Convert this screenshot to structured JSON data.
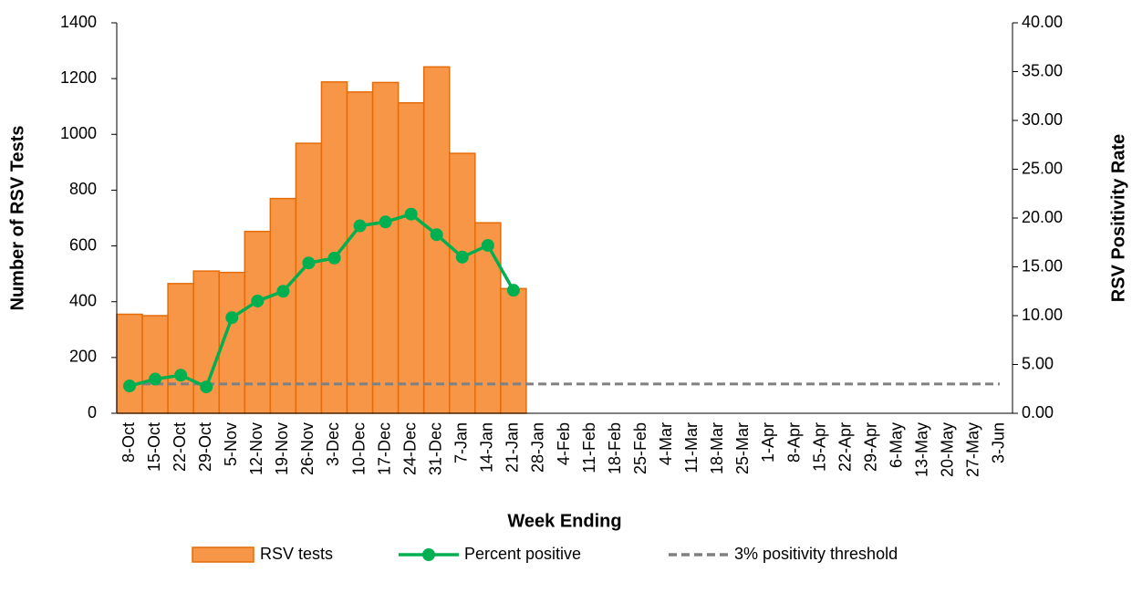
{
  "chart_data": {
    "type": "bar",
    "x_label": "Week Ending",
    "y_label": "Number of RSV Tests",
    "y2_label": "RSV Positivity Rate",
    "categories": [
      "8-Oct",
      "15-Oct",
      "22-Oct",
      "29-Oct",
      "5-Nov",
      "12-Nov",
      "19-Nov",
      "26-Nov",
      "3-Dec",
      "10-Dec",
      "17-Dec",
      "24-Dec",
      "31-Dec",
      "7-Jan",
      "14-Jan",
      "21-Jan",
      "28-Jan",
      "4-Feb",
      "11-Feb",
      "18-Feb",
      "25-Feb",
      "4-Mar",
      "11-Mar",
      "18-Mar",
      "25-Mar",
      "1-Apr",
      "8-Apr",
      "15-Apr",
      "22-Apr",
      "29-Apr",
      "6-May",
      "13-May",
      "20-May",
      "27-May",
      "3-Jun"
    ],
    "series": [
      {
        "name": "RSV tests",
        "type": "bar",
        "color": "#f79646",
        "edge": "#e46c0a",
        "values": [
          355,
          350,
          465,
          510,
          505,
          652,
          770,
          968,
          1188,
          1152,
          1186,
          1113,
          1242,
          932,
          683,
          447,
          null,
          null,
          null,
          null,
          null,
          null,
          null,
          null,
          null,
          null,
          null,
          null,
          null,
          null,
          null,
          null,
          null,
          null,
          null
        ]
      },
      {
        "name": "Percent positive",
        "type": "line",
        "axis": "y2",
        "color": "#00b050",
        "markers": true,
        "values": [
          2.8,
          3.5,
          3.9,
          2.7,
          9.8,
          11.5,
          12.5,
          15.4,
          15.9,
          19.2,
          19.6,
          20.4,
          18.3,
          16.0,
          17.2,
          12.6,
          null,
          null,
          null,
          null,
          null,
          null,
          null,
          null,
          null,
          null,
          null,
          null,
          null,
          null,
          null,
          null,
          null,
          null,
          null
        ]
      },
      {
        "name": "3% positivity threshold",
        "type": "line",
        "axis": "y2",
        "color": "#808080",
        "dashed": true,
        "values": [
          3,
          3,
          3,
          3,
          3,
          3,
          3,
          3,
          3,
          3,
          3,
          3,
          3,
          3,
          3,
          3,
          3,
          3,
          3,
          3,
          3,
          3,
          3,
          3,
          3,
          3,
          3,
          3,
          3,
          3,
          3,
          3,
          3,
          3,
          3
        ]
      }
    ],
    "ylim": [
      0,
      1400
    ],
    "yticks": [
      0,
      200,
      400,
      600,
      800,
      1000,
      1200,
      1400
    ],
    "y2lim": [
      0,
      40
    ],
    "y2ticks": [
      {
        "value": 0,
        "label": "0.00"
      },
      {
        "value": 5,
        "label": "5.00"
      },
      {
        "value": 10,
        "label": "10.00"
      },
      {
        "value": 15,
        "label": "15.00"
      },
      {
        "value": 20,
        "label": "20.00"
      },
      {
        "value": 25,
        "label": "25.00"
      },
      {
        "value": 30,
        "label": "30.00"
      },
      {
        "value": 35,
        "label": "35.00"
      },
      {
        "value": 40,
        "label": "40.00"
      }
    ],
    "legend": "bottom"
  }
}
